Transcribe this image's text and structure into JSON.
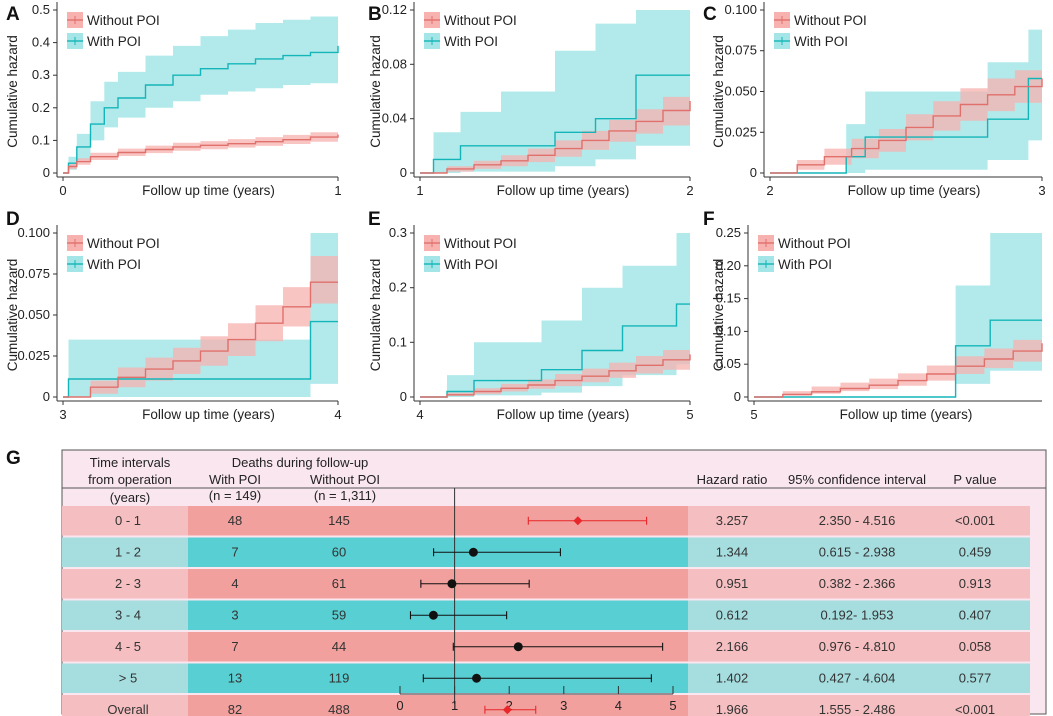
{
  "colors": {
    "without_line": "#e0706c",
    "without_band": "#f7b2af",
    "with_line": "#14b5b8",
    "with_band": "#a4e6e8",
    "table_bg": "#f9e6ef",
    "pink_row": "#f5bec1",
    "pink_dark": "#f2a09d",
    "teal_row": "#a6dee0",
    "teal_dark": "#58cfd2",
    "forest_red": "#e8272a",
    "forest_black": "#111111"
  },
  "chart_data": [
    {
      "type": "line",
      "panel_label": "A",
      "xlabel": "Follow up time (years)",
      "ylabel": "Cumulative hazard",
      "xlim": [
        0,
        1
      ],
      "ylim": [
        0,
        0.5
      ],
      "xticks": [
        "0",
        "1"
      ],
      "yticks": [
        "0",
        "0.1",
        "0.2",
        "0.3",
        "0.4",
        "0.5"
      ],
      "legend": [
        "Without POI",
        "With POI"
      ],
      "legend_position": "top-left",
      "series": [
        {
          "name": "Without POI",
          "x": [
            0,
            0.02,
            0.05,
            0.1,
            0.2,
            0.3,
            0.4,
            0.5,
            0.6,
            0.7,
            0.8,
            0.9,
            1.0
          ],
          "values": [
            0,
            0.02,
            0.035,
            0.05,
            0.063,
            0.072,
            0.08,
            0.085,
            0.09,
            0.096,
            0.102,
            0.11,
            0.118
          ],
          "lower": [
            0,
            0.012,
            0.025,
            0.04,
            0.052,
            0.061,
            0.068,
            0.073,
            0.078,
            0.083,
            0.089,
            0.096,
            0.103
          ],
          "upper": [
            0,
            0.028,
            0.045,
            0.062,
            0.075,
            0.084,
            0.093,
            0.098,
            0.104,
            0.11,
            0.117,
            0.125,
            0.135
          ]
        },
        {
          "name": "With POI",
          "x": [
            0,
            0.02,
            0.05,
            0.1,
            0.15,
            0.2,
            0.3,
            0.4,
            0.5,
            0.6,
            0.7,
            0.8,
            0.9,
            1.0
          ],
          "values": [
            0,
            0.03,
            0.08,
            0.15,
            0.2,
            0.23,
            0.27,
            0.3,
            0.32,
            0.335,
            0.35,
            0.36,
            0.37,
            0.39
          ],
          "lower": [
            0,
            0.01,
            0.04,
            0.1,
            0.14,
            0.17,
            0.2,
            0.22,
            0.24,
            0.25,
            0.26,
            0.27,
            0.275,
            0.29
          ],
          "upper": [
            0,
            0.05,
            0.12,
            0.22,
            0.28,
            0.31,
            0.36,
            0.39,
            0.42,
            0.44,
            0.46,
            0.47,
            0.48,
            0.49
          ]
        }
      ]
    },
    {
      "type": "line",
      "panel_label": "B",
      "xlabel": "Follow up time (years)",
      "ylabel": "Cumulative hazard",
      "xlim": [
        1,
        2
      ],
      "ylim": [
        0,
        0.12
      ],
      "xticks": [
        "1",
        "2"
      ],
      "yticks": [
        "0",
        "0.04",
        "0.08",
        "0.12"
      ],
      "legend": [
        "Without POI",
        "With POI"
      ],
      "legend_position": "top-left",
      "series": [
        {
          "name": "Without POI",
          "x": [
            1.0,
            1.1,
            1.2,
            1.3,
            1.4,
            1.5,
            1.6,
            1.7,
            1.8,
            1.9,
            2.0
          ],
          "values": [
            0,
            0.003,
            0.006,
            0.009,
            0.013,
            0.018,
            0.024,
            0.031,
            0.038,
            0.046,
            0.053
          ],
          "lower": [
            0,
            0.001,
            0.003,
            0.005,
            0.008,
            0.012,
            0.017,
            0.023,
            0.029,
            0.035,
            0.041
          ],
          "upper": [
            0,
            0.005,
            0.009,
            0.013,
            0.018,
            0.024,
            0.031,
            0.039,
            0.047,
            0.056,
            0.065
          ]
        },
        {
          "name": "With POI",
          "x": [
            1.0,
            1.05,
            1.15,
            1.3,
            1.5,
            1.65,
            1.8,
            2.0
          ],
          "values": [
            0,
            0.01,
            0.02,
            0.02,
            0.03,
            0.04,
            0.072,
            0.072
          ],
          "lower": [
            0,
            0,
            0.001,
            0.001,
            0.005,
            0.01,
            0.02,
            0.02
          ],
          "upper": [
            0,
            0.03,
            0.045,
            0.06,
            0.09,
            0.11,
            0.12,
            0.12
          ]
        }
      ]
    },
    {
      "type": "line",
      "panel_label": "C",
      "xlabel": "Follow up time (years)",
      "ylabel": "Cumulative hazard",
      "xlim": [
        2,
        3
      ],
      "ylim": [
        0,
        0.1
      ],
      "xticks": [
        "2",
        "3"
      ],
      "yticks": [
        "0",
        "0.025",
        "0.050",
        "0.075",
        "0.100"
      ],
      "legend": [
        "Without POI",
        "With POI"
      ],
      "legend_position": "top-left",
      "series": [
        {
          "name": "Without POI",
          "x": [
            2.0,
            2.1,
            2.2,
            2.3,
            2.4,
            2.5,
            2.6,
            2.7,
            2.8,
            2.9,
            3.0
          ],
          "values": [
            0,
            0.005,
            0.01,
            0.015,
            0.02,
            0.028,
            0.035,
            0.042,
            0.048,
            0.053,
            0.058
          ],
          "lower": [
            0,
            0.002,
            0.005,
            0.009,
            0.013,
            0.02,
            0.026,
            0.032,
            0.038,
            0.043,
            0.048
          ],
          "upper": [
            0,
            0.008,
            0.015,
            0.021,
            0.027,
            0.036,
            0.044,
            0.052,
            0.058,
            0.063,
            0.068
          ]
        },
        {
          "name": "With POI",
          "x": [
            2.0,
            2.28,
            2.35,
            2.8,
            2.95,
            3.0
          ],
          "values": [
            0,
            0.01,
            0.022,
            0.033,
            0.058,
            0.058
          ],
          "lower": [
            0,
            0,
            0.002,
            0.008,
            0.02,
            0.02
          ],
          "upper": [
            0,
            0.03,
            0.05,
            0.068,
            0.088,
            0.088
          ]
        }
      ]
    },
    {
      "type": "line",
      "panel_label": "D",
      "xlabel": "Follow up time (years)",
      "ylabel": "Cumulative hazard",
      "xlim": [
        3,
        4
      ],
      "ylim": [
        0,
        0.1
      ],
      "xticks": [
        "3",
        "4"
      ],
      "yticks": [
        "0",
        "0.025",
        "0.050",
        "0.075",
        "0.100"
      ],
      "legend": [
        "Without POI",
        "With POI"
      ],
      "legend_position": "top-left",
      "series": [
        {
          "name": "Without POI",
          "x": [
            3.0,
            3.1,
            3.2,
            3.3,
            3.4,
            3.5,
            3.6,
            3.7,
            3.8,
            3.9,
            4.0
          ],
          "values": [
            0,
            0.006,
            0.012,
            0.017,
            0.022,
            0.028,
            0.035,
            0.045,
            0.055,
            0.07,
            0.07
          ],
          "lower": [
            0,
            0.002,
            0.006,
            0.01,
            0.014,
            0.019,
            0.025,
            0.034,
            0.043,
            0.057,
            0.057
          ],
          "upper": [
            0,
            0.01,
            0.018,
            0.024,
            0.03,
            0.037,
            0.045,
            0.056,
            0.067,
            0.086,
            0.086
          ]
        },
        {
          "name": "With POI",
          "x": [
            3.0,
            3.02,
            3.9,
            4.0
          ],
          "values": [
            0,
            0.011,
            0.046,
            0.046
          ],
          "lower": [
            0,
            0,
            0.008,
            0.008
          ],
          "upper": [
            0,
            0.035,
            0.1,
            0.1
          ]
        }
      ]
    },
    {
      "type": "line",
      "panel_label": "E",
      "xlabel": "Follow up time (years)",
      "ylabel": "Cumulative hazard",
      "xlim": [
        4,
        5
      ],
      "ylim": [
        0,
        0.3
      ],
      "xticks": [
        "4",
        "5"
      ],
      "yticks": [
        "0",
        "0.1",
        "0.2",
        "0.3"
      ],
      "legend": [
        "Without POI",
        "With POI"
      ],
      "legend_position": "top-left",
      "series": [
        {
          "name": "Without POI",
          "x": [
            4.0,
            4.1,
            4.2,
            4.3,
            4.4,
            4.5,
            4.6,
            4.7,
            4.8,
            4.9,
            5.0
          ],
          "values": [
            0,
            0.004,
            0.01,
            0.016,
            0.022,
            0.03,
            0.038,
            0.048,
            0.058,
            0.068,
            0.078
          ],
          "lower": [
            0,
            0.002,
            0.005,
            0.01,
            0.015,
            0.02,
            0.027,
            0.035,
            0.043,
            0.05,
            0.058
          ],
          "upper": [
            0,
            0.008,
            0.016,
            0.024,
            0.032,
            0.042,
            0.052,
            0.063,
            0.075,
            0.086,
            0.098
          ]
        },
        {
          "name": "With POI",
          "x": [
            4.0,
            4.1,
            4.2,
            4.45,
            4.6,
            4.75,
            4.95,
            5.0
          ],
          "values": [
            0,
            0.01,
            0.03,
            0.05,
            0.085,
            0.13,
            0.17,
            0.17
          ],
          "lower": [
            0,
            0,
            0.003,
            0.008,
            0.02,
            0.04,
            0.06,
            0.06
          ],
          "upper": [
            0,
            0.04,
            0.1,
            0.14,
            0.2,
            0.24,
            0.3,
            0.3
          ]
        }
      ]
    },
    {
      "type": "line",
      "panel_label": "F",
      "xlabel": "Follow up time (years)",
      "ylabel": "Cumulative hazard",
      "xlim": [
        5,
        10
      ],
      "ylim": [
        0,
        0.25
      ],
      "xticks": [
        "5"
      ],
      "yticks": [
        "0",
        "0.05",
        "0.10",
        "0.15",
        "0.20",
        "0.25"
      ],
      "legend": [
        "Without POI",
        "With POI"
      ],
      "legend_position": "top-left",
      "series": [
        {
          "name": "Without POI",
          "x": [
            5.0,
            5.5,
            6.0,
            6.5,
            7.0,
            7.5,
            8.0,
            8.5,
            9.0,
            9.5,
            10.0
          ],
          "values": [
            0,
            0.004,
            0.008,
            0.013,
            0.018,
            0.025,
            0.035,
            0.047,
            0.058,
            0.07,
            0.082
          ],
          "lower": [
            0,
            0.002,
            0.005,
            0.009,
            0.012,
            0.017,
            0.025,
            0.035,
            0.044,
            0.054,
            0.064
          ],
          "upper": [
            0,
            0.009,
            0.016,
            0.022,
            0.028,
            0.036,
            0.048,
            0.062,
            0.074,
            0.087,
            0.1
          ]
        },
        {
          "name": "With POI",
          "x": [
            5.0,
            8.1,
            8.5,
            9.1,
            10.0
          ],
          "values": [
            0,
            0.0,
            0.078,
            0.117,
            0.117
          ],
          "lower": [
            0,
            0.0,
            0.02,
            0.04,
            0.04
          ],
          "upper": [
            0,
            0.0,
            0.17,
            0.25,
            0.25
          ]
        }
      ]
    },
    {
      "type": "table",
      "panel_label": "G",
      "headers": {
        "interval_line1": "Time intervals",
        "interval_line2": "from operation",
        "interval_line3": "(years)",
        "deaths": "Deaths during follow-up",
        "with_poi": "With POI",
        "with_n": "(n = 149)",
        "without_poi": "Without POI",
        "without_n": "(n = 1,311)",
        "hr": "Hazard ratio",
        "ci": "95% confidence interval",
        "p": "P value"
      },
      "rows": [
        {
          "interval": "0 - 1",
          "with": "48",
          "without": "145",
          "hr": "3.257",
          "ci": "2.350 - 4.516",
          "p": "<0.001",
          "hr_value": 3.257,
          "lo": 2.35,
          "hi": 4.516,
          "sig": true
        },
        {
          "interval": "1 - 2",
          "with": "7",
          "without": "60",
          "hr": "1.344",
          "ci": "0.615 - 2.938",
          "p": "0.459",
          "hr_value": 1.344,
          "lo": 0.615,
          "hi": 2.938,
          "sig": false
        },
        {
          "interval": "2 - 3",
          "with": "4",
          "without": "61",
          "hr": "0.951",
          "ci": "0.382 - 2.366",
          "p": "0.913",
          "hr_value": 0.951,
          "lo": 0.382,
          "hi": 2.366,
          "sig": false
        },
        {
          "interval": "3 - 4",
          "with": "3",
          "without": "59",
          "hr": "0.612",
          "ci": "0.192- 1.953",
          "p": "0.407",
          "hr_value": 0.612,
          "lo": 0.192,
          "hi": 1.953,
          "sig": false
        },
        {
          "interval": "4 - 5",
          "with": "7",
          "without": "44",
          "hr": "2.166",
          "ci": "0.976 - 4.810",
          "p": "0.058",
          "hr_value": 2.166,
          "lo": 0.976,
          "hi": 4.81,
          "sig": false
        },
        {
          "interval": "> 5",
          "with": "13",
          "without": "119",
          "hr": "1.402",
          "ci": "0.427 - 4.604",
          "p": "0.577",
          "hr_value": 1.402,
          "lo": 0.427,
          "hi": 4.604,
          "sig": false
        },
        {
          "interval": "Overall",
          "with": "82",
          "without": "488",
          "hr": "1.966",
          "ci": "1.555 - 2.486",
          "p": "<0.001",
          "hr_value": 1.966,
          "lo": 1.555,
          "hi": 2.486,
          "sig": true
        }
      ],
      "forest_axis": {
        "range": [
          0,
          5
        ],
        "ticks": [
          "0",
          "1",
          "2",
          "3",
          "4",
          "5"
        ],
        "reference": 1
      }
    }
  ]
}
